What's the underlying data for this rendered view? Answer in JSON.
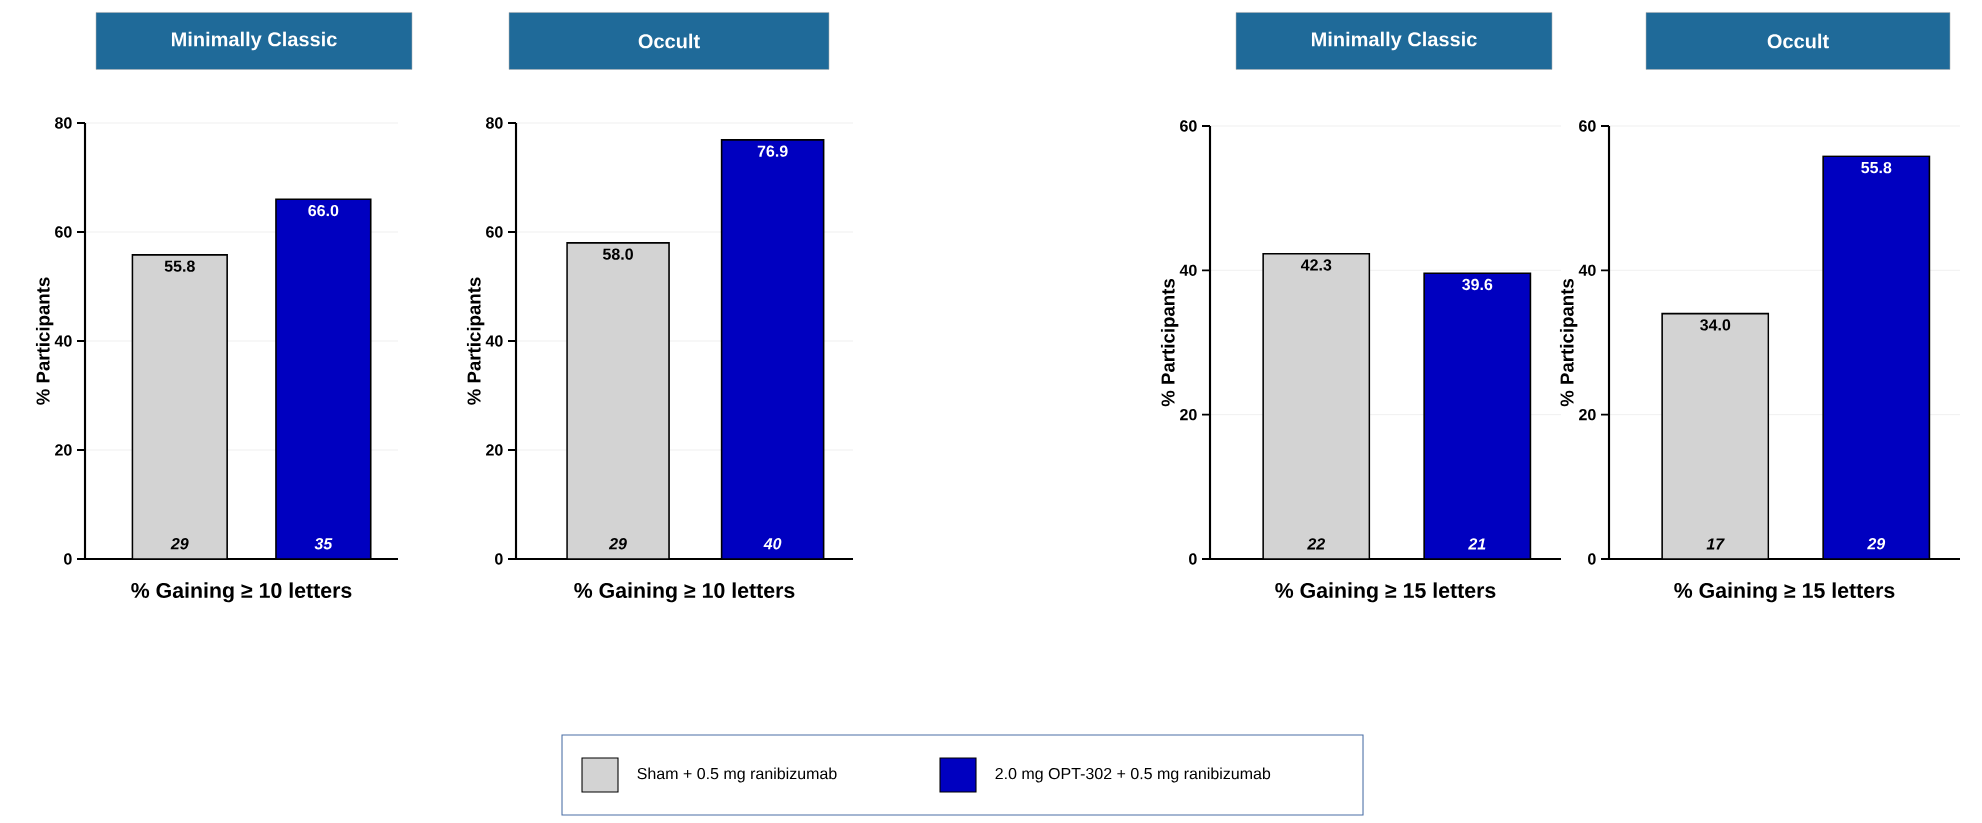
{
  "chart_data": [
    {
      "type": "bar",
      "title": "Minimally Classic",
      "xlabel": "% Gaining ≥ 10 letters",
      "ylabel": "% Participants",
      "categories": [
        null,
        null
      ],
      "series": [
        {
          "name": "Sham + 0.5 mg ranibizumab",
          "color": "#d3d3d3",
          "values": [
            55.8,
            null
          ],
          "value_labels": [
            "55.8",
            null
          ]
        },
        {
          "name": "2.0 mg OPT-302 + 0.5 mg ranibizumab",
          "color": "#0000c0",
          "values": [
            null,
            66.0
          ],
          "value_labels": [
            null,
            "66.0"
          ]
        }
      ],
      "ylim": [
        0,
        80
      ],
      "yticks": [
        0,
        20,
        40,
        60,
        80
      ],
      "grid": "y",
      "legend": "bottom",
      "annotations": [
        "29",
        "35"
      ]
    },
    {
      "type": "bar",
      "title": "Occult",
      "xlabel": "% Gaining ≥ 10 letters",
      "ylabel": "% Participants",
      "categories": [
        null,
        null
      ],
      "series": [
        {
          "color": "#d3d3d3",
          "values": [
            58.0,
            null
          ],
          "value_labels": [
            "58.0",
            null
          ]
        },
        {
          "color": "#0000c0",
          "values": [
            null,
            76.9
          ],
          "value_labels": [
            null,
            "76.9"
          ]
        }
      ],
      "ylim": [
        0,
        80
      ],
      "yticks": [
        0,
        20,
        40,
        60,
        80
      ],
      "grid": "y",
      "annotations": [
        "29",
        "40"
      ]
    },
    {
      "type": "bar",
      "title": "Minimally Classic",
      "xlabel": "% Gaining ≥ 15 letters",
      "ylabel": "% Participants",
      "categories": [
        null,
        null
      ],
      "series": [
        {
          "color": "#d3d3d3",
          "values": [
            42.3,
            null
          ],
          "value_labels": [
            "42.3",
            null
          ]
        },
        {
          "color": "#0000c0",
          "values": [
            null,
            39.6
          ],
          "value_labels": [
            null,
            "39.6"
          ]
        }
      ],
      "ylim": [
        0,
        60
      ],
      "yticks": [
        0,
        20,
        40,
        60
      ],
      "grid": "y",
      "annotations": [
        "22",
        "21"
      ]
    },
    {
      "type": "bar",
      "title": "Occult",
      "xlabel": "% Gaining ≥ 15 letters",
      "ylabel": "% Participants",
      "categories": [
        null,
        null
      ],
      "series": [
        {
          "color": "#d3d3d3",
          "values": [
            34.0,
            null
          ],
          "value_labels": [
            "34.0",
            null
          ]
        },
        {
          "color": "#0000c0",
          "values": [
            null,
            55.8
          ],
          "value_labels": [
            null,
            "55.8"
          ]
        }
      ],
      "ylim": [
        0,
        60
      ],
      "yticks": [
        0,
        20,
        40,
        60
      ],
      "grid": "y",
      "annotations": [
        "17",
        "29"
      ]
    }
  ]
}
